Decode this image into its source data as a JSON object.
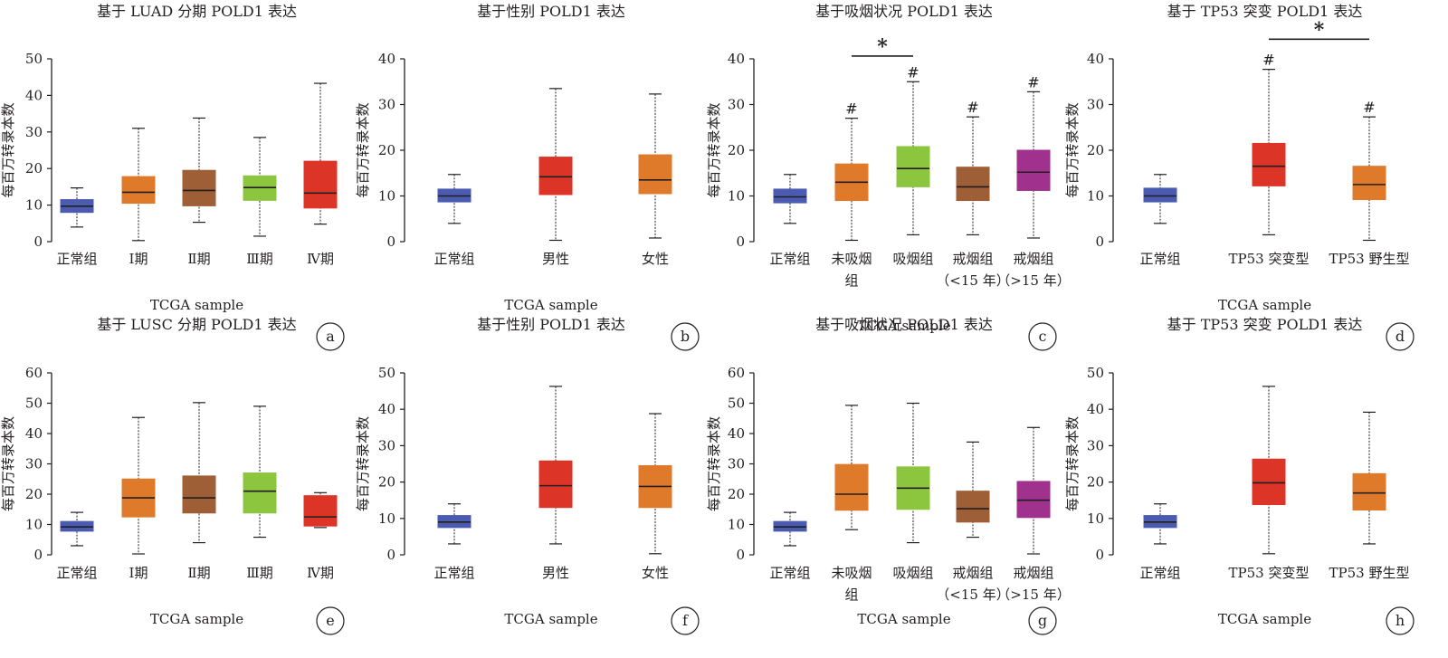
{
  "colors": {
    "normal": "#4a5bb0",
    "orange": "#e07a2b",
    "brown": "#9e5f37",
    "green": "#8cc63e",
    "red": "#dc3427",
    "purple": "#a0318c"
  },
  "chart_data": [
    {
      "type": "boxplot",
      "panel_label": "a",
      "title": "基于 LUAD 分期 POLD1 表达",
      "ylabel": "每百万转录本数",
      "xlabel": "TCGA sample",
      "ylim": [
        0,
        50
      ],
      "yticks": [
        0,
        10,
        20,
        30,
        40,
        50
      ],
      "grid": false,
      "legend": "none",
      "categories": [
        [
          "正常组"
        ],
        [
          "Ⅰ期"
        ],
        [
          "Ⅱ期"
        ],
        [
          "Ⅲ期"
        ],
        [
          "Ⅳ期"
        ]
      ],
      "boxes": [
        {
          "min": 4,
          "q1": 8,
          "median": 9.7,
          "q3": 11.5,
          "max": 14.7,
          "color": "#4a5bb0"
        },
        {
          "min": 0.3,
          "q1": 10.5,
          "median": 13.5,
          "q3": 17.8,
          "max": 31,
          "color": "#e07a2b"
        },
        {
          "min": 5.3,
          "q1": 9.8,
          "median": 14,
          "q3": 19.5,
          "max": 33.8,
          "color": "#9e5f37"
        },
        {
          "min": 1.5,
          "q1": 11.3,
          "median": 14.8,
          "q3": 18,
          "max": 28.5,
          "color": "#8cc63e"
        },
        {
          "min": 4.8,
          "q1": 9.2,
          "median": 13.3,
          "q3": 22,
          "max": 43.3,
          "color": "#dc3427"
        }
      ],
      "marks": [],
      "brackets": []
    },
    {
      "type": "boxplot",
      "panel_label": "b",
      "title": "基于性别 POLD1 表达",
      "ylabel": "每百万转录本数",
      "xlabel": "TCGA sample",
      "ylim": [
        0,
        40
      ],
      "yticks": [
        0,
        10,
        20,
        30,
        40
      ],
      "grid": false,
      "legend": "none",
      "categories": [
        [
          "正常组"
        ],
        [
          "男性"
        ],
        [
          "女性"
        ]
      ],
      "boxes": [
        {
          "min": 4,
          "q1": 8.7,
          "median": 10,
          "q3": 11.5,
          "max": 14.7,
          "color": "#4a5bb0"
        },
        {
          "min": 0.3,
          "q1": 10.3,
          "median": 14.2,
          "q3": 18.5,
          "max": 33.5,
          "color": "#dc3427"
        },
        {
          "min": 0.8,
          "q1": 10.5,
          "median": 13.5,
          "q3": 19,
          "max": 32.3,
          "color": "#e07a2b"
        }
      ],
      "marks": [],
      "brackets": []
    },
    {
      "type": "boxplot",
      "panel_label": "c",
      "title": "基于吸烟状况 POLD1 表达",
      "ylabel": "每百万转录本数",
      "xlabel": "TCGA sample",
      "ylim": [
        0,
        40
      ],
      "yticks": [
        0,
        10,
        20,
        30,
        40
      ],
      "grid": false,
      "legend": "none",
      "categories": [
        [
          "正常组"
        ],
        [
          "未吸烟",
          "组"
        ],
        [
          "吸烟组"
        ],
        [
          "戒烟组",
          "（<15 年）"
        ],
        [
          "戒烟组",
          "（>15 年）"
        ]
      ],
      "boxes": [
        {
          "min": 4,
          "q1": 8.5,
          "median": 9.8,
          "q3": 11.5,
          "max": 14.7,
          "color": "#4a5bb0"
        },
        {
          "min": 0.3,
          "q1": 9,
          "median": 13,
          "q3": 17,
          "max": 27,
          "color": "#e07a2b"
        },
        {
          "min": 1.5,
          "q1": 12,
          "median": 16,
          "q3": 20.8,
          "max": 35,
          "color": "#8cc63e"
        },
        {
          "min": 1.5,
          "q1": 9,
          "median": 12,
          "q3": 16.3,
          "max": 27.3,
          "color": "#9e5f37"
        },
        {
          "min": 0.8,
          "q1": 11.2,
          "median": 15.2,
          "q3": 20,
          "max": 32.8,
          "color": "#a0318c"
        }
      ],
      "marks": [
        {
          "box": 1,
          "text": "#"
        },
        {
          "box": 2,
          "text": "#"
        },
        {
          "box": 3,
          "text": "#"
        },
        {
          "box": 4,
          "text": "#"
        }
      ],
      "brackets": [
        {
          "from": 1,
          "to": 2,
          "y": 40.6,
          "text": "*"
        }
      ]
    },
    {
      "type": "boxplot",
      "panel_label": "d",
      "title": "基于 TP53 突变 POLD1 表达",
      "ylabel": "每百万转录本数",
      "xlabel": "TCGA sample",
      "ylim": [
        0,
        40
      ],
      "yticks": [
        0,
        10,
        20,
        30,
        40
      ],
      "grid": false,
      "legend": "none",
      "categories": [
        [
          "正常组"
        ],
        [
          "TP53 突变型"
        ],
        [
          "TP53 野生型"
        ]
      ],
      "boxes": [
        {
          "min": 4,
          "q1": 8.7,
          "median": 10,
          "q3": 11.7,
          "max": 14.7,
          "color": "#4a5bb0"
        },
        {
          "min": 1.5,
          "q1": 12.2,
          "median": 16.5,
          "q3": 21.5,
          "max": 37.7,
          "color": "#dc3427"
        },
        {
          "min": 0.3,
          "q1": 9.2,
          "median": 12.5,
          "q3": 16.5,
          "max": 27.3,
          "color": "#e07a2b"
        }
      ],
      "marks": [
        {
          "box": 1,
          "text": "#"
        },
        {
          "box": 2,
          "text": "#"
        }
      ],
      "brackets": [
        {
          "from": 1,
          "to": 2,
          "y": 44.3,
          "text": "*"
        }
      ]
    },
    {
      "type": "boxplot",
      "panel_label": "e",
      "title": "基于 LUSC 分期 POLD1 表达",
      "ylabel": "每百万转录本数",
      "xlabel": "TCGA sample",
      "ylim": [
        0,
        60
      ],
      "yticks": [
        0,
        10,
        20,
        30,
        40,
        50,
        60
      ],
      "grid": false,
      "legend": "none",
      "categories": [
        [
          "正常组"
        ],
        [
          "Ⅰ期"
        ],
        [
          "Ⅱ期"
        ],
        [
          "Ⅲ期"
        ],
        [
          "Ⅳ期"
        ]
      ],
      "boxes": [
        {
          "min": 3,
          "q1": 7.8,
          "median": 9.2,
          "q3": 11,
          "max": 14,
          "color": "#4a5bb0"
        },
        {
          "min": 0.3,
          "q1": 12.5,
          "median": 18.8,
          "q3": 25,
          "max": 45.3,
          "color": "#e07a2b"
        },
        {
          "min": 4,
          "q1": 13.8,
          "median": 18.8,
          "q3": 26,
          "max": 50.2,
          "color": "#9e5f37"
        },
        {
          "min": 5.8,
          "q1": 13.8,
          "median": 21,
          "q3": 27,
          "max": 49,
          "color": "#8cc63e"
        },
        {
          "min": 9,
          "q1": 9.5,
          "median": 12.5,
          "q3": 19.5,
          "max": 20.5,
          "color": "#dc3427"
        }
      ],
      "marks": [],
      "brackets": []
    },
    {
      "type": "boxplot",
      "panel_label": "f",
      "title": "基于性别 POLD1 表达",
      "ylabel": "每百万转录本数",
      "xlabel": "TCGA sample",
      "ylim": [
        0,
        50
      ],
      "yticks": [
        0,
        10,
        20,
        30,
        40,
        50
      ],
      "grid": false,
      "legend": "none",
      "categories": [
        [
          "正常组"
        ],
        [
          "男性"
        ],
        [
          "女性"
        ]
      ],
      "boxes": [
        {
          "min": 3,
          "q1": 7.5,
          "median": 9,
          "q3": 10.8,
          "max": 14,
          "color": "#4a5bb0"
        },
        {
          "min": 3,
          "q1": 13,
          "median": 19,
          "q3": 25.8,
          "max": 46.3,
          "color": "#dc3427"
        },
        {
          "min": 0.3,
          "q1": 13,
          "median": 18.8,
          "q3": 24.5,
          "max": 38.8,
          "color": "#e07a2b"
        }
      ],
      "marks": [],
      "brackets": []
    },
    {
      "type": "boxplot",
      "panel_label": "g",
      "title": "基于吸烟状况 POLD1 表达",
      "ylabel": "每百万转录本数",
      "xlabel": "TCGA sample",
      "ylim": [
        0,
        60
      ],
      "yticks": [
        0,
        10,
        20,
        30,
        40,
        50,
        60
      ],
      "grid": false,
      "legend": "none",
      "categories": [
        [
          "正常组"
        ],
        [
          "未吸烟",
          "组"
        ],
        [
          "吸烟组"
        ],
        [
          "戒烟组",
          "（<15 年）"
        ],
        [
          "戒烟组",
          "（>15 年）"
        ]
      ],
      "boxes": [
        {
          "min": 3,
          "q1": 7.8,
          "median": 9.2,
          "q3": 11,
          "max": 14,
          "color": "#4a5bb0"
        },
        {
          "min": 8.3,
          "q1": 14.7,
          "median": 20,
          "q3": 29.8,
          "max": 49.3,
          "color": "#e07a2b"
        },
        {
          "min": 4,
          "q1": 15,
          "median": 22,
          "q3": 29,
          "max": 50,
          "color": "#8cc63e"
        },
        {
          "min": 5.8,
          "q1": 10.8,
          "median": 15.2,
          "q3": 21,
          "max": 37.2,
          "color": "#9e5f37"
        },
        {
          "min": 0.3,
          "q1": 12.3,
          "median": 18,
          "q3": 24.2,
          "max": 42,
          "color": "#a0318c"
        }
      ],
      "marks": [],
      "brackets": []
    },
    {
      "type": "boxplot",
      "panel_label": "h",
      "title": "基于 TP53 突变 POLD1 表达",
      "ylabel": "每百万转录本数",
      "xlabel": "TCGA sample",
      "ylim": [
        0,
        50
      ],
      "yticks": [
        0,
        10,
        20,
        30,
        40,
        50
      ],
      "grid": false,
      "legend": "none",
      "categories": [
        [
          "正常组"
        ],
        [
          "TP53 突变型"
        ],
        [
          "TP53 野生型"
        ]
      ],
      "boxes": [
        {
          "min": 3,
          "q1": 7.5,
          "median": 9,
          "q3": 10.8,
          "max": 14,
          "color": "#4a5bb0"
        },
        {
          "min": 0.3,
          "q1": 13.8,
          "median": 19.8,
          "q3": 26.3,
          "max": 46.3,
          "color": "#dc3427"
        },
        {
          "min": 3,
          "q1": 12.3,
          "median": 17,
          "q3": 22.3,
          "max": 39.2,
          "color": "#e07a2b"
        }
      ],
      "marks": [],
      "brackets": []
    }
  ]
}
